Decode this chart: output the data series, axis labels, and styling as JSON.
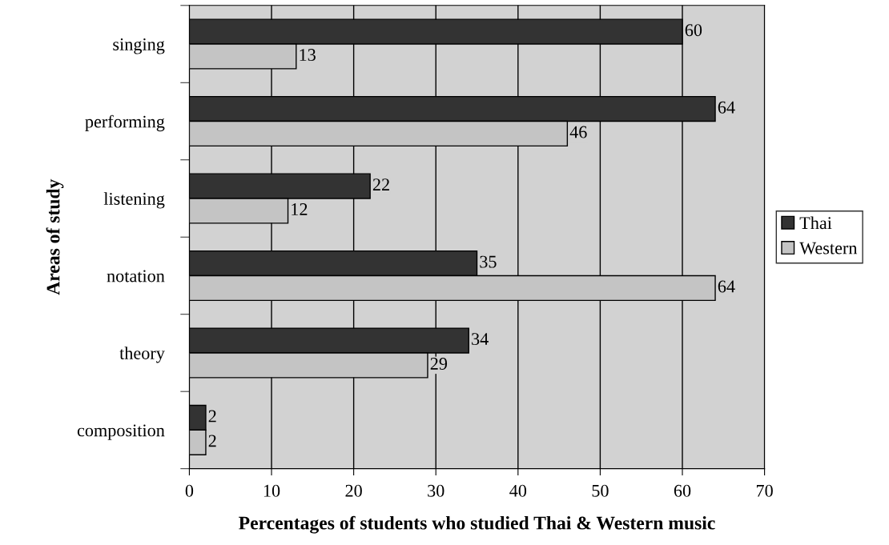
{
  "chart_data": {
    "type": "bar",
    "orientation": "horizontal",
    "xlabel": "Percentages of students who studied Thai & Western music",
    "ylabel": "Areas of study",
    "categories": [
      "singing",
      "performing",
      "listening",
      "notation",
      "theory",
      "composition"
    ],
    "series": [
      {
        "name": "Thai",
        "color": "#333333",
        "values": [
          60,
          64,
          22,
          35,
          34,
          2
        ]
      },
      {
        "name": "Western",
        "color": "#c4c4c4",
        "values": [
          13,
          46,
          12,
          64,
          29,
          2
        ]
      }
    ],
    "xlim": [
      0,
      70
    ],
    "xticks": [
      0,
      10,
      20,
      30,
      40,
      50,
      60,
      70
    ],
    "grid": "x",
    "legend": "right",
    "data_labels": true
  }
}
